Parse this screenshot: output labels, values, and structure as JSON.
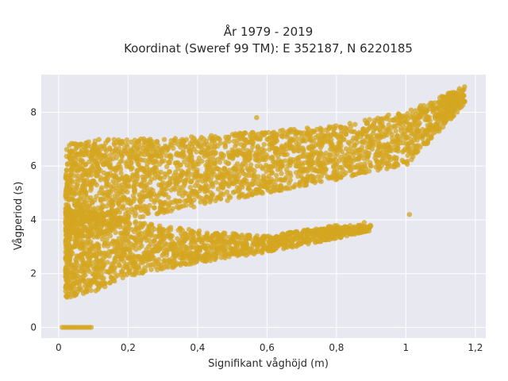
{
  "chart_data": {
    "type": "scatter",
    "title_line1": "År 1979 - 2019",
    "title_line2": "Koordinat (Sweref 99 TM): E 352187, N 6220185",
    "xlabel": "Signifikant våghöjd (m)",
    "ylabel": "Vågperiod (s)",
    "xlim": [
      -0.05,
      1.23
    ],
    "ylim": [
      -0.4,
      9.4
    ],
    "xticks": [
      0,
      0.2,
      0.4,
      0.6,
      0.8,
      1,
      1.2
    ],
    "xtick_labels": [
      "0",
      "0,2",
      "0,4",
      "0,6",
      "0,8",
      "1",
      "1,2"
    ],
    "yticks": [
      0,
      2,
      4,
      6,
      8
    ],
    "ytick_labels": [
      "0",
      "2",
      "4",
      "6",
      "8"
    ],
    "grid": true,
    "marker_color": "#d4a520",
    "plot_background": "#e8e8f0",
    "upper_branch": [
      {
        "x": 0.02,
        "lower": 3.2,
        "upper": 6.8
      },
      {
        "x": 0.1,
        "lower": 3.6,
        "upper": 7.0
      },
      {
        "x": 0.2,
        "lower": 4.0,
        "upper": 7.0
      },
      {
        "x": 0.4,
        "lower": 4.5,
        "upper": 7.1
      },
      {
        "x": 0.6,
        "lower": 5.0,
        "upper": 7.3
      },
      {
        "x": 0.8,
        "lower": 5.5,
        "upper": 7.5
      },
      {
        "x": 1.0,
        "lower": 6.0,
        "upper": 8.0
      },
      {
        "x": 1.17,
        "lower": 8.3,
        "upper": 9.0
      }
    ],
    "lower_branch": [
      {
        "x": 0.02,
        "lower": 1.1,
        "upper": 4.5
      },
      {
        "x": 0.1,
        "lower": 1.3,
        "upper": 4.4
      },
      {
        "x": 0.2,
        "lower": 1.9,
        "upper": 4.0
      },
      {
        "x": 0.4,
        "lower": 2.4,
        "upper": 3.6
      },
      {
        "x": 0.6,
        "lower": 2.8,
        "upper": 3.4
      },
      {
        "x": 0.8,
        "lower": 3.3,
        "upper": 3.8
      },
      {
        "x": 0.9,
        "lower": 3.6,
        "upper": 3.8
      }
    ],
    "zero_row": {
      "y": 0,
      "x_from": 0.01,
      "x_to": 0.1
    },
    "outliers": [
      {
        "x": 0.57,
        "y": 7.8
      },
      {
        "x": 0.73,
        "y": 7.3
      },
      {
        "x": 0.88,
        "y": 3.9
      },
      {
        "x": 1.01,
        "y": 4.2
      },
      {
        "x": 0.95,
        "y": 7.9
      },
      {
        "x": 1.12,
        "y": 8.6
      }
    ]
  }
}
